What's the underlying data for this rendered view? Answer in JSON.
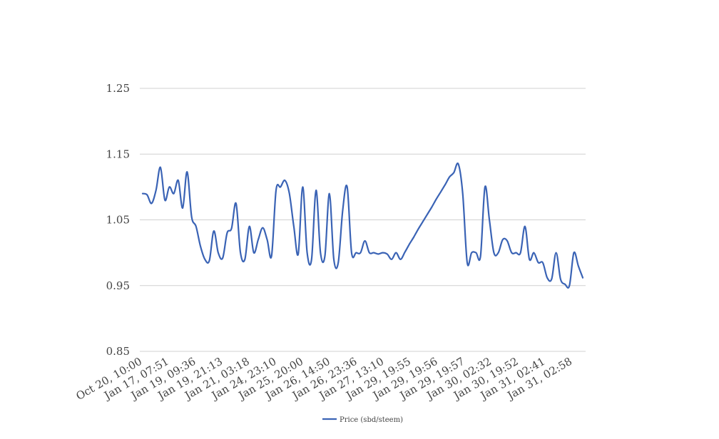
{
  "chart_data": {
    "type": "line",
    "title": "",
    "xlabel": "",
    "ylabel": "",
    "ylim": [
      0.85,
      1.25
    ],
    "yticks": [
      1.25,
      1.15,
      1.05,
      0.95,
      0.85
    ],
    "ytick_labels": [
      "1.25",
      "1.15",
      "1.05",
      "0.95",
      "0.85"
    ],
    "xtick_labels": [
      "Oct 20, 10:00",
      "Jan 17, 07:51",
      "Jan 19, 09:36",
      "Jan 19, 21:13",
      "Jan 21, 03:18",
      "Jan 24, 23:10",
      "Jan 25, 20:00",
      "Jan 26, 14:50",
      "Jan 26, 23:36",
      "Jan 27, 13:10",
      "Jan 29, 19:55",
      "Jan 29, 19:56",
      "Jan 29, 19:57",
      "Jan 30, 02:32",
      "Jan 30, 19:52",
      "Jan 31, 02:41",
      "Jan 31, 02:58"
    ],
    "grid": true,
    "legend_position": "bottom",
    "series": [
      {
        "name": "Price (sbd/steem)",
        "color": "#3a63b5",
        "values": [
          1.09,
          1.088,
          1.075,
          1.095,
          1.13,
          1.08,
          1.1,
          1.09,
          1.11,
          1.068,
          1.123,
          1.055,
          1.04,
          1.01,
          0.99,
          0.988,
          1.033,
          1.0,
          0.992,
          1.03,
          1.037,
          1.075,
          1.0,
          0.99,
          1.04,
          1.0,
          1.02,
          1.038,
          1.02,
          0.995,
          1.095,
          1.1,
          1.11,
          1.09,
          1.04,
          0.998,
          1.1,
          1.0,
          0.99,
          1.095,
          1.0,
          0.995,
          1.09,
          0.99,
          0.985,
          1.065,
          1.1,
          1.0,
          1.0,
          1.0,
          1.018,
          1.0,
          1.0,
          0.998,
          1.0,
          0.998,
          0.99,
          1.0,
          0.99,
          1.001,
          1.013,
          1.024,
          1.036,
          1.047,
          1.058,
          1.069,
          1.081,
          1.092,
          1.103,
          1.115,
          1.122,
          1.135,
          1.09,
          0.985,
          1.0,
          1.0,
          0.995,
          1.1,
          1.05,
          1.0,
          1.0,
          1.02,
          1.018,
          1.0,
          1.0,
          1.0,
          1.04,
          0.99,
          1.0,
          0.985,
          0.985,
          0.962,
          0.96,
          1.0,
          0.96,
          0.952,
          0.95,
          1.0,
          0.98,
          0.962
        ]
      }
    ]
  }
}
